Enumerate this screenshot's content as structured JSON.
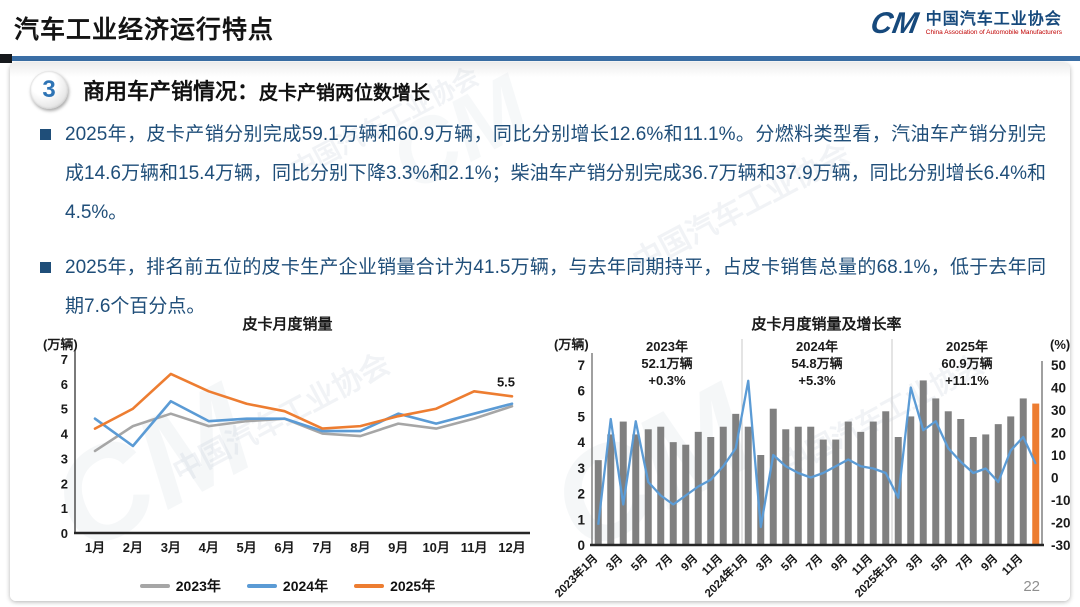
{
  "header": {
    "title": "汽车工业经济运行特点",
    "logo": {
      "mark": "CM",
      "org_cn": "中国汽车工业协会",
      "org_en": "China Association of Automobile Manufacturers"
    }
  },
  "section": {
    "number": "3",
    "title_main": "商用车产销情况：",
    "title_sub": "皮卡产销两位数增长"
  },
  "bullets": [
    {
      "text": "2025年，皮卡产销分别完成59.1万辆和60.9万辆，同比分别增长12.6%和11.1%。分燃料类型看，汽油车产销分别完成14.6万辆和15.4万辆，同比分别下降3.3%和2.1%；柴油车产销分别完成36.7万辆和37.9万辆，同比分别增长6.4%和4.5%。"
    },
    {
      "text": "2025年，排名前五位的皮卡生产企业销量合计为41.5万辆，与去年同期持平，占皮卡销售总量的68.1%，低于去年同期7.6个百分点。"
    }
  ],
  "watermark": {
    "text": "中国汽车工业协会",
    "mark": "CM"
  },
  "page_number": "22",
  "colors": {
    "gray_line": "#A6A6A6",
    "blue_line": "#5B9BD5",
    "orange_line": "#ED7D31",
    "bar_gray": "#808080",
    "bar_highlight": "#ED7D31",
    "text_navy": "#1F4E79",
    "divider_blue": "#3A6EA5",
    "logo_blue": "#16497C",
    "logo_red": "#C00000"
  },
  "chart_data": [
    {
      "type": "line",
      "title": "皮卡月度销量",
      "ylabel": "(万辆)",
      "ylim": [
        0,
        7
      ],
      "yticks": [
        0,
        1,
        2,
        3,
        4,
        5,
        6,
        7
      ],
      "categories": [
        "1月",
        "2月",
        "3月",
        "4月",
        "5月",
        "6月",
        "7月",
        "8月",
        "9月",
        "10月",
        "11月",
        "12月"
      ],
      "series": [
        {
          "name": "2023年",
          "color": "#A6A6A6",
          "values": [
            3.3,
            4.3,
            4.8,
            4.3,
            4.5,
            4.6,
            4.0,
            3.9,
            4.4,
            4.2,
            4.6,
            5.1
          ]
        },
        {
          "name": "2024年",
          "color": "#5B9BD5",
          "values": [
            4.6,
            3.5,
            5.3,
            4.5,
            4.6,
            4.6,
            4.1,
            4.1,
            4.8,
            4.4,
            4.8,
            5.2
          ]
        },
        {
          "name": "2025年",
          "color": "#ED7D31",
          "values": [
            4.2,
            5.0,
            6.4,
            5.7,
            5.2,
            4.9,
            4.2,
            4.3,
            4.7,
            5.0,
            5.7,
            5.5
          ]
        }
      ],
      "end_label": {
        "series": "2025年",
        "text": "5.5"
      },
      "grid": false,
      "legend_position": "bottom"
    },
    {
      "type": "bar+line",
      "title": "皮卡月度销量及增长率",
      "ylabel_left": "(万辆)",
      "ylabel_right": "(%)",
      "ylim_left": [
        0,
        7
      ],
      "ylim_right": [
        -30,
        50
      ],
      "yticks_left": [
        0,
        1,
        2,
        3,
        4,
        5,
        6,
        7
      ],
      "yticks_right": [
        -30,
        -20,
        -10,
        0,
        10,
        20,
        30,
        40,
        50
      ],
      "x_tick_labels": [
        "2023年1月",
        "3月",
        "5月",
        "7月",
        "9月",
        "11月",
        "2024年1月",
        "3月",
        "5月",
        "7月",
        "9月",
        "11月",
        "2025年1月",
        "3月",
        "5月",
        "7月",
        "9月",
        "11月"
      ],
      "bars": {
        "name": "皮卡月度销量(万辆)",
        "color": "#808080",
        "highlight_last_color": "#ED7D31",
        "values": [
          3.3,
          4.3,
          4.8,
          4.3,
          4.5,
          4.6,
          4.0,
          3.9,
          4.4,
          4.2,
          4.6,
          5.1,
          4.6,
          3.5,
          5.3,
          4.5,
          4.6,
          4.6,
          4.1,
          4.1,
          4.8,
          4.4,
          4.8,
          5.2,
          4.2,
          5.0,
          6.4,
          5.7,
          5.2,
          4.9,
          4.2,
          4.3,
          4.7,
          5.0,
          5.7,
          5.5
        ]
      },
      "line": {
        "name": "增长率(%)",
        "color": "#5B9BD5",
        "values": [
          -21,
          26,
          -12,
          25,
          -2,
          -8,
          -12,
          -8,
          -4,
          -1,
          5,
          13,
          43,
          -22,
          10,
          5,
          2,
          0,
          2,
          5,
          8,
          5,
          4,
          2,
          -9,
          40,
          21,
          25,
          13,
          7,
          2,
          4,
          -2,
          12,
          18,
          6
        ]
      },
      "annotations": [
        {
          "lines": [
            "2023年",
            "52.1万辆",
            "+0.3%"
          ]
        },
        {
          "lines": [
            "2024年",
            "54.8万辆",
            "+5.3%"
          ]
        },
        {
          "lines": [
            "2025年",
            "60.9万辆",
            "+11.1%"
          ]
        }
      ],
      "year_separators_after_index": [
        11,
        23
      ],
      "grid": false
    }
  ]
}
